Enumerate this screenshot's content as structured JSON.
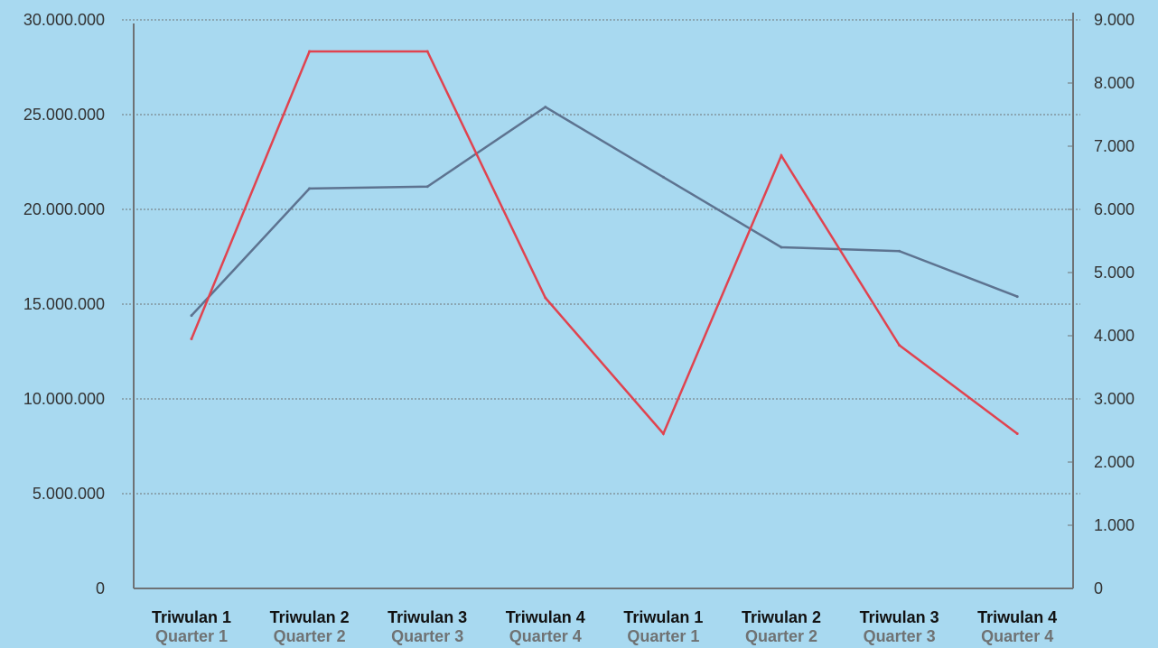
{
  "chart_data": {
    "type": "line",
    "title": "",
    "xlabel": "",
    "ylabel": "",
    "y2label": "",
    "grid": true,
    "legend": "none",
    "categories": [
      {
        "id": "Triwulan 1",
        "en": "Quarter 1"
      },
      {
        "id": "Triwulan 2",
        "en": "Quarter 2"
      },
      {
        "id": "Triwulan 3",
        "en": "Quarter 3"
      },
      {
        "id": "Triwulan 4",
        "en": "Quarter 4"
      },
      {
        "id": "Triwulan 1",
        "en": "Quarter 1"
      },
      {
        "id": "Triwulan 2",
        "en": "Quarter 2"
      },
      {
        "id": "Triwulan 3",
        "en": "Quarter 3"
      },
      {
        "id": "Triwulan 4",
        "en": "Quarter 4"
      }
    ],
    "y_left": {
      "range": [
        0,
        30000000
      ],
      "ticks": [
        0,
        5000000,
        10000000,
        15000000,
        20000000,
        25000000,
        30000000
      ],
      "tick_labels": [
        "0",
        "5.000.000",
        "10.000.000",
        "15.000.000",
        "20.000.000",
        "25.000.000",
        "30.000.000"
      ]
    },
    "y_right": {
      "range": [
        0,
        9000
      ],
      "ticks": [
        0,
        1000,
        2000,
        3000,
        4000,
        5000,
        6000,
        7000,
        8000,
        9000
      ],
      "tick_labels": [
        "0",
        "1.000",
        "2.000",
        "3.000",
        "4.000",
        "5.000",
        "6.000",
        "7.000",
        "8.000",
        "9.000"
      ]
    },
    "series": [
      {
        "axis": "left",
        "color": "#5d7390",
        "values": [
          14400000,
          21100000,
          21200000,
          25400000,
          21700000,
          18000000,
          17800000,
          15400000
        ]
      },
      {
        "axis": "right",
        "color": "#e0434f",
        "values": [
          3950,
          8500,
          8500,
          4600,
          2450,
          6850,
          3850,
          2450
        ]
      }
    ],
    "colors": {
      "background": "#a8d9f0",
      "axis": "#6e7275",
      "grid": "#6e7275"
    }
  }
}
